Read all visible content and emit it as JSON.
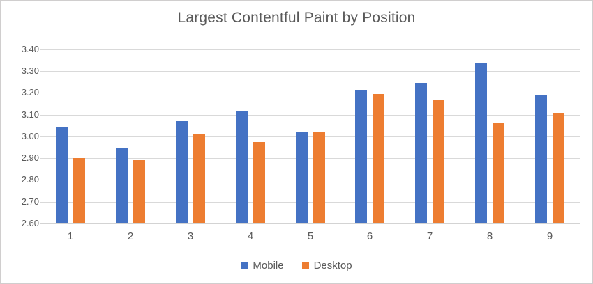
{
  "chart_data": {
    "type": "bar",
    "title": "Largest Contentful Paint by Position",
    "categories": [
      "1",
      "2",
      "3",
      "4",
      "5",
      "6",
      "7",
      "8",
      "9"
    ],
    "series": [
      {
        "name": "Mobile",
        "color": "#4472C4",
        "values": [
          3.045,
          2.945,
          3.07,
          3.115,
          3.02,
          3.21,
          3.245,
          3.34,
          3.19
        ]
      },
      {
        "name": "Desktop",
        "color": "#ED7D31",
        "values": [
          2.9,
          2.89,
          3.01,
          2.975,
          3.02,
          3.195,
          3.165,
          3.065,
          3.105
        ]
      }
    ],
    "y_axis": {
      "min": 2.6,
      "max": 3.4,
      "step": 0.1,
      "tick_labels": [
        "2.60",
        "2.70",
        "2.80",
        "2.90",
        "3.00",
        "3.10",
        "3.20",
        "3.30",
        "3.40"
      ]
    },
    "x_axis": {
      "label": ""
    },
    "grid": true,
    "legend_position": "bottom",
    "colors": {
      "mobile": "#4472C4",
      "desktop": "#ED7D31",
      "gridline": "#D9D9D9",
      "text": "#595959",
      "background": "#FFFFFF",
      "border": "#D0CECE"
    }
  }
}
